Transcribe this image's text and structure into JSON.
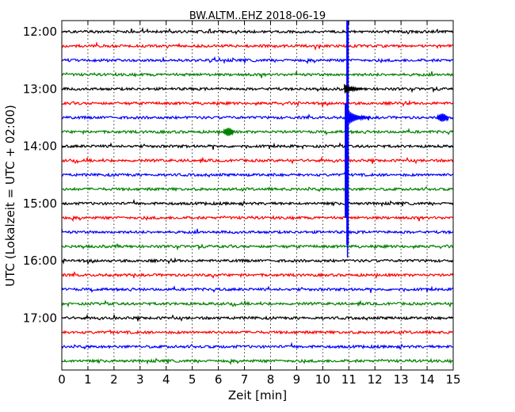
{
  "chart_data": {
    "type": "line",
    "title": "BW.ALTM..EHZ 2018-06-19",
    "xlabel": "Zeit  [min]",
    "ylabel": "UTC (Lokalzeit = UTC + 02:00)",
    "xlim": [
      0,
      15
    ],
    "x_ticks": [
      "0",
      "1",
      "2",
      "3",
      "4",
      "5",
      "6",
      "7",
      "8",
      "9",
      "10",
      "11",
      "12",
      "13",
      "14",
      "15"
    ],
    "y_ticks": [
      "12:00",
      "13:00",
      "14:00",
      "15:00",
      "16:00",
      "17:00"
    ],
    "grid": "vertical dotted",
    "trace_colors": [
      "#000000",
      "#ff0000",
      "#0000ff",
      "#008000"
    ],
    "trace_count": 24,
    "trace_interval_min": 15,
    "events": [
      {
        "trace_start": "12:00",
        "trace_end": "15:45",
        "x_min": 10.95,
        "series": "earthquake"
      },
      {
        "trace_start": "13:30",
        "trace_end": "13:30",
        "x_min": 14.6,
        "series": "local burst"
      },
      {
        "trace_start": "13:45",
        "trace_end": "13:45",
        "x_min": 6.4,
        "series": "local burst"
      }
    ]
  }
}
